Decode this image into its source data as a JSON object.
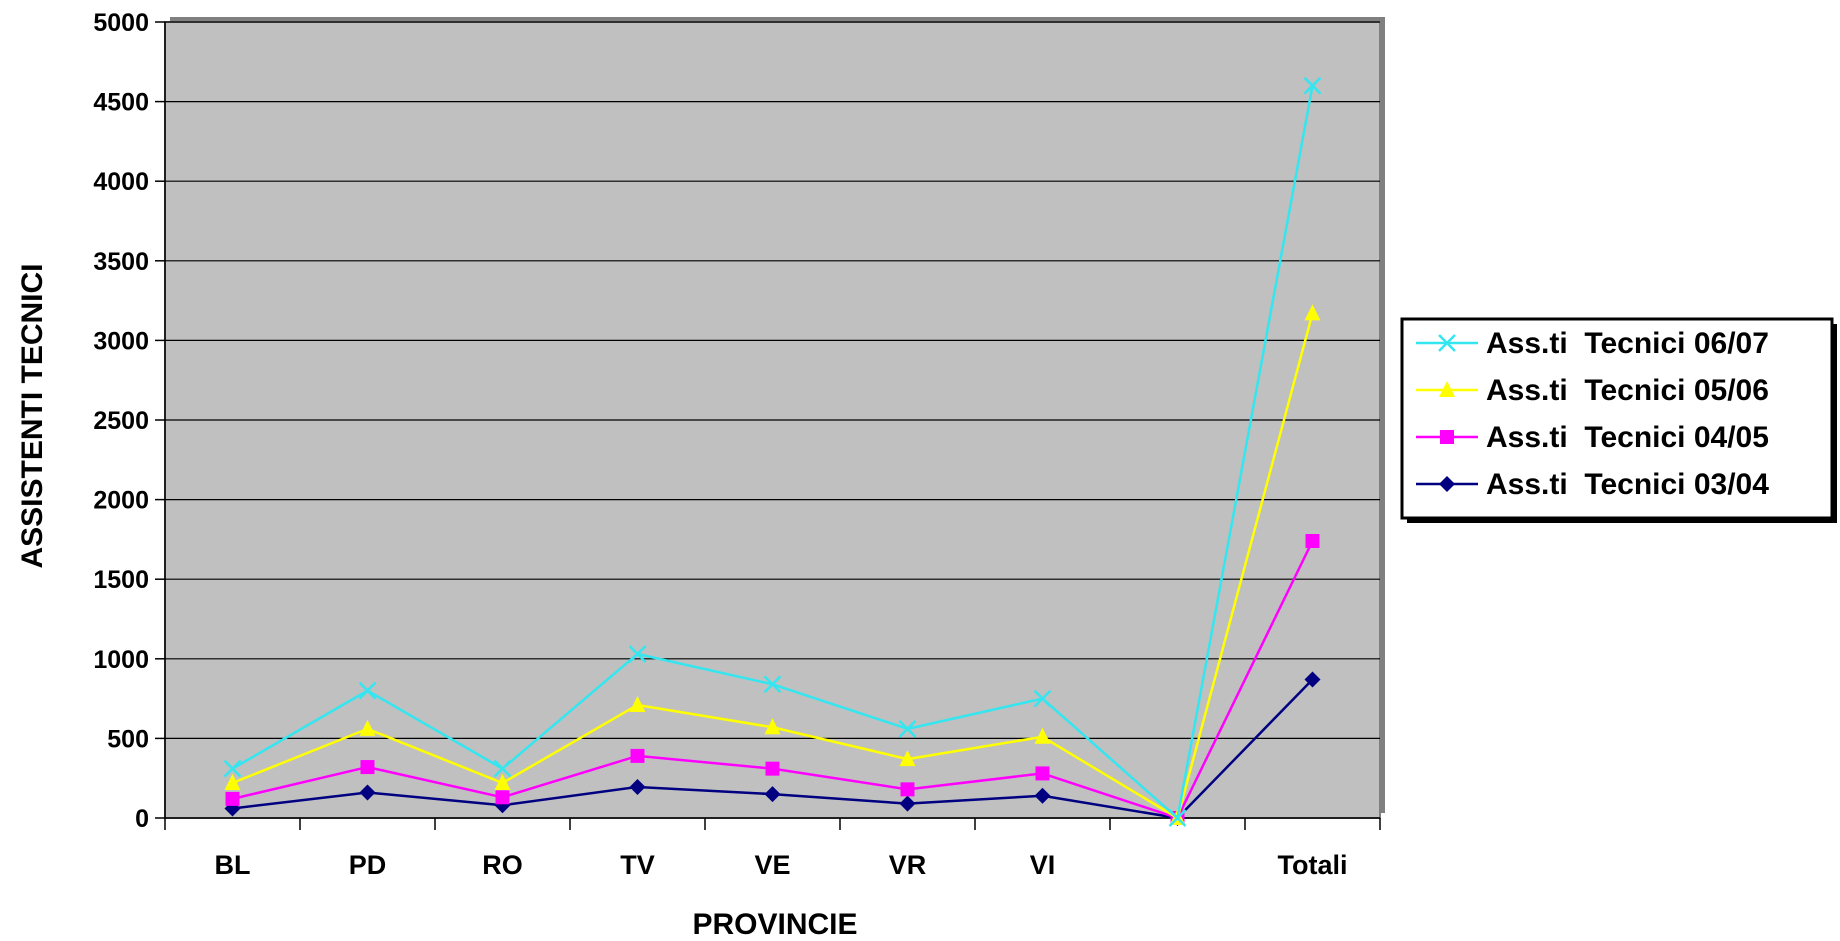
{
  "chart_data": {
    "type": "line",
    "title": "",
    "xlabel": "PROVINCIE",
    "ylabel": "ASSISTENTI TECNICI",
    "categories": [
      "BL",
      "PD",
      "RO",
      "TV",
      "VE",
      "VR",
      "VI",
      "",
      "Totali"
    ],
    "ylim": [
      0,
      5000
    ],
    "yticks": [
      0,
      500,
      1000,
      1500,
      2000,
      2500,
      3000,
      3500,
      4000,
      4500,
      5000
    ],
    "grid": true,
    "legend_position": "right",
    "plot_background": "#c0c0c0",
    "series": [
      {
        "name": "Ass.ti  Tecnici 06/07",
        "color": "#33e6f0",
        "marker": "x",
        "values": [
          310,
          800,
          310,
          1030,
          840,
          560,
          750,
          0,
          4600
        ]
      },
      {
        "name": "Ass.ti  Tecnici 05/06",
        "color": "#ffff00",
        "marker": "triangle",
        "values": [
          220,
          560,
          220,
          710,
          570,
          370,
          510,
          0,
          3170
        ]
      },
      {
        "name": "Ass.ti  Tecnici 04/05",
        "color": "#ff00ff",
        "marker": "square",
        "values": [
          120,
          320,
          130,
          390,
          310,
          180,
          280,
          0,
          1740
        ]
      },
      {
        "name": "Ass.ti  Tecnici 03/04",
        "color": "#000080",
        "marker": "diamond",
        "values": [
          60,
          160,
          80,
          195,
          150,
          90,
          140,
          0,
          870
        ]
      }
    ]
  }
}
